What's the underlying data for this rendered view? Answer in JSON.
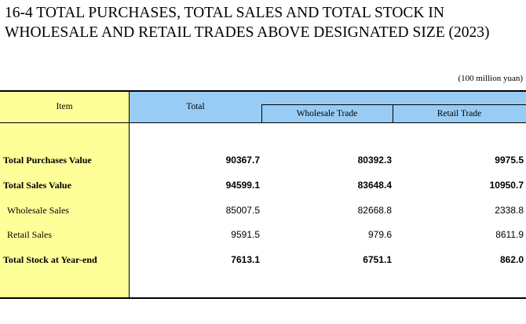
{
  "title": {
    "line1": "16-4  TOTAL PURCHASES, TOTAL SALES AND TOTAL STOCK IN",
    "line2": "WHOLESALE AND RETAIL TRADES ABOVE DESIGNATED SIZE (2023)"
  },
  "unit": "(100 million yuan)",
  "header": {
    "item": "Item",
    "total": "Total",
    "wholesale": "Wholesale Trade",
    "retail": "Retail Trade"
  },
  "rows": [
    {
      "label": "Total Purchases Value",
      "total": "90367.7",
      "wholesale": "80392.3",
      "retail": "9975.5"
    },
    {
      "label": "Total Sales Value",
      "total": "94599.1",
      "wholesale": "83648.4",
      "retail": "10950.7"
    },
    {
      "label": "Wholesale Sales",
      "total": "85007.5",
      "wholesale": "82668.8",
      "retail": "2338.8"
    },
    {
      "label": "Retail Sales",
      "total": "9591.5",
      "wholesale": "979.6",
      "retail": "8611.9"
    },
    {
      "label": "Total Stock at Year-end",
      "total": "7613.1",
      "wholesale": "6751.1",
      "retail": "862.0"
    }
  ]
}
